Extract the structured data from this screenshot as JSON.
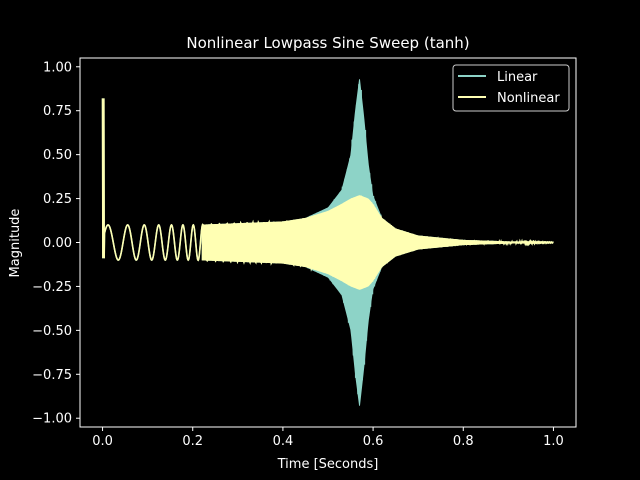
{
  "chart_data": {
    "type": "line",
    "title": "Nonlinear Lowpass Sine Sweep (tanh)",
    "xlabel": "Time [Seconds]",
    "ylabel": "Magnitude",
    "xlim": [
      -0.05,
      1.05
    ],
    "ylim": [
      -1.05,
      1.05
    ],
    "xticks": [
      0.0,
      0.2,
      0.4,
      0.6,
      0.8,
      1.0
    ],
    "xtick_labels": [
      "0.0",
      "0.2",
      "0.4",
      "0.6",
      "0.8",
      "1.0"
    ],
    "yticks": [
      1.0,
      0.75,
      0.5,
      0.25,
      0.0,
      -0.25,
      -0.5,
      -0.75,
      -1.0
    ],
    "ytick_labels": [
      "1.00",
      "0.75",
      "0.50",
      "0.25",
      "0.00",
      "−0.25",
      "−0.50",
      "−0.75",
      "−1.00"
    ],
    "grid": false,
    "legend_placement": "upper right",
    "series": [
      {
        "name": "Linear",
        "color": "#8dd3c7",
        "description_points": {
          "t": [
            0.0,
            0.1,
            0.2,
            0.3,
            0.4,
            0.45,
            0.5,
            0.53,
            0.55,
            0.56,
            0.57,
            0.58,
            0.59,
            0.6,
            0.62,
            0.65,
            0.7,
            0.8,
            0.9,
            1.0
          ],
          "envelope": [
            0.1,
            0.1,
            0.1,
            0.11,
            0.12,
            0.14,
            0.2,
            0.3,
            0.5,
            0.75,
            0.95,
            0.72,
            0.45,
            0.27,
            0.14,
            0.08,
            0.04,
            0.015,
            0.006,
            0.003
          ]
        }
      },
      {
        "name": "Nonlinear",
        "color": "#ffffb3",
        "description_points": {
          "t": [
            0.0,
            0.1,
            0.2,
            0.3,
            0.4,
            0.45,
            0.5,
            0.53,
            0.55,
            0.57,
            0.59,
            0.6,
            0.62,
            0.65,
            0.7,
            0.8,
            0.9,
            1.0
          ],
          "envelope": [
            0.1,
            0.1,
            0.1,
            0.11,
            0.12,
            0.14,
            0.18,
            0.22,
            0.25,
            0.27,
            0.25,
            0.22,
            0.14,
            0.08,
            0.04,
            0.015,
            0.006,
            0.003
          ]
        }
      }
    ],
    "initial_spike": {
      "t": 0.0,
      "max": 0.82,
      "min": -0.09
    }
  }
}
